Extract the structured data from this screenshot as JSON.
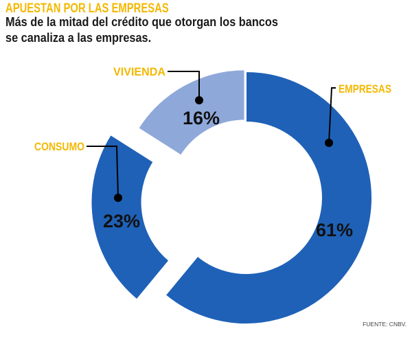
{
  "chart_data": {
    "type": "pie",
    "donut": true,
    "title": "APUESTAN POR LAS EMPRESAS",
    "subtitle": [
      "Más de la mitad del crédito que otorgan los bancos",
      "se canaliza a las empresas."
    ],
    "categories": [
      "EMPRESAS",
      "CONSUMO",
      "VIVIENDA"
    ],
    "values": [
      61,
      23,
      16
    ],
    "data_labels": [
      "61%",
      "23%",
      "16%"
    ],
    "colors": [
      "#1f61b7",
      "#1f61b7",
      "#8fa8da"
    ]
  },
  "source": "FUENTE: CNBV.",
  "colors": {
    "accent": "#f3b800",
    "text": "#1a1a1a",
    "data_label": "#111111",
    "leader": "#000000"
  }
}
